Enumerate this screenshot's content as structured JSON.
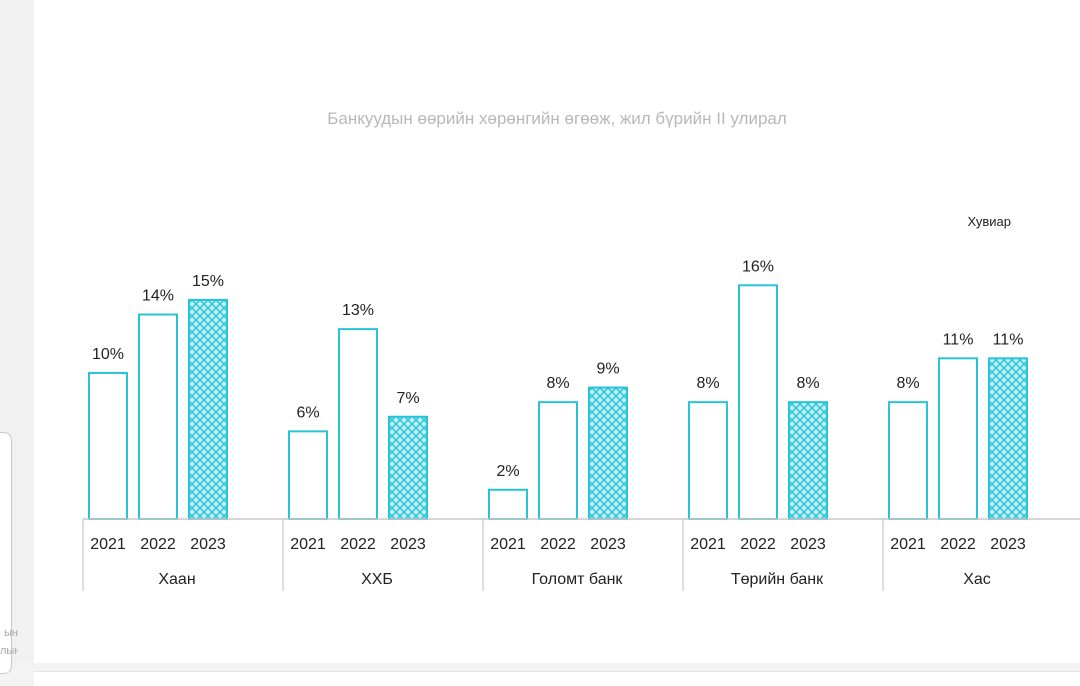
{
  "chart_data": {
    "type": "bar",
    "title": "Банкуудын өөрийн хөрөнгийн өгөөж, жил бүрийн II улирал",
    "unit_label": "Хувиар",
    "groups": [
      "Хаан",
      "ХХБ",
      "Голомт банк",
      "Төрийн банк",
      "Хас"
    ],
    "years": [
      "2021",
      "2022",
      "2023"
    ],
    "values": [
      [
        10,
        14,
        15
      ],
      [
        6,
        13,
        7
      ],
      [
        2,
        8,
        9
      ],
      [
        8,
        16,
        8
      ],
      [
        8,
        11,
        11
      ]
    ],
    "value_labels": [
      [
        "10%",
        "14%",
        "15%"
      ],
      [
        "6%",
        "13%",
        "7%"
      ],
      [
        "2%",
        "8%",
        "9%"
      ],
      [
        "8%",
        "16%",
        "8%"
      ],
      [
        "8%",
        "11%",
        "11%"
      ]
    ],
    "ylim": [
      0,
      16.5
    ],
    "grid": false,
    "colors": {
      "bar_stroke": "#27c3d6",
      "pattern_fill": "#27c3d6",
      "pattern_bg": "#bfeef4",
      "axis": "#c8c8c8",
      "text": "#222222",
      "title": "#b8b8b8"
    }
  },
  "side_fragments": [
    "ын",
    "лын"
  ]
}
